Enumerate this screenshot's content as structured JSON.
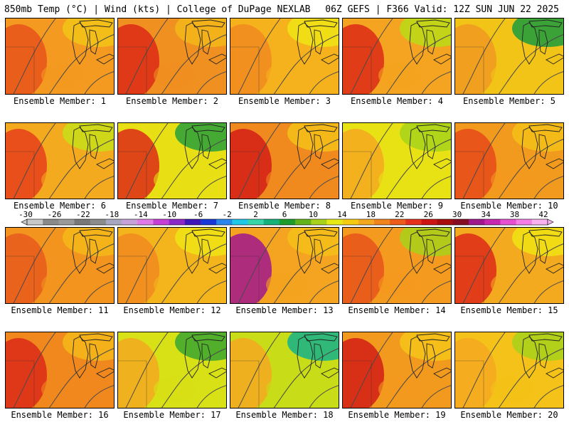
{
  "header": {
    "left": "850mb Temp (°C) | Wind (kts) | College of DuPage NEXLAB",
    "right": "06Z GEFS | F366 Valid: 12Z SUN JUN 22 2025"
  },
  "colorbar": {
    "labels": [
      "-30",
      "-26",
      "-22",
      "-18",
      "-14",
      "-10",
      "-6",
      "-2",
      "2",
      "6",
      "10",
      "14",
      "18",
      "22",
      "26",
      "30",
      "34",
      "38",
      "42"
    ],
    "colors": [
      "#c8c8c8",
      "#8a8a8a",
      "#9a9a9a",
      "#787878",
      "#8c8c8c",
      "#a7a7c0",
      "#c6a2d8",
      "#e07ae8",
      "#c640d8",
      "#8c28c8",
      "#3c18b8",
      "#1838d8",
      "#2a86ea",
      "#20c8e8",
      "#36d6a8",
      "#14b278",
      "#1e9c2e",
      "#62b41a",
      "#a8d21a",
      "#e6ea14",
      "#f6ca10",
      "#f4a820",
      "#f2841c",
      "#ec5a1c",
      "#e4301c",
      "#cc1414",
      "#a80c0c",
      "#840c24",
      "#a0188c",
      "#c828b0",
      "#e650d0",
      "#f47ee4",
      "#f8b0ee"
    ]
  },
  "members": [
    {
      "label": "Ensemble Member: 1",
      "base": "#f49a20",
      "tint": "#e8541c",
      "blob": "#f2c418"
    },
    {
      "label": "Ensemble Member: 2",
      "base": "#f09020",
      "tint": "#dc2a18",
      "blob": "#f4b81a"
    },
    {
      "label": "Ensemble Member: 3",
      "base": "#f6b21c",
      "tint": "#f08a1e",
      "blob": "#eee414"
    },
    {
      "label": "Ensemble Member: 4",
      "base": "#f4a420",
      "tint": "#dc2a18",
      "blob": "#b8dc18"
    },
    {
      "label": "Ensemble Member: 5",
      "base": "#f2c418",
      "tint": "#f09a20",
      "blob": "#1a9c3c"
    },
    {
      "label": "Ensemble Member: 6",
      "base": "#f4aa1e",
      "tint": "#e6401a",
      "blob": "#c8e018"
    },
    {
      "label": "Ensemble Member: 7",
      "base": "#e8e014",
      "tint": "#dc2a18",
      "blob": "#28a038"
    },
    {
      "label": "Ensemble Member: 8",
      "base": "#f08a1e",
      "tint": "#d41c16",
      "blob": "#f4c018"
    },
    {
      "label": "Ensemble Member: 9",
      "base": "#e8e214",
      "tint": "#f4a820",
      "blob": "#a6d21a"
    },
    {
      "label": "Ensemble Member: 10",
      "base": "#f29a1e",
      "tint": "#e64a1a",
      "blob": "#f4c018"
    },
    {
      "label": "Ensemble Member: 11",
      "base": "#f2941e",
      "tint": "#e85a1c",
      "blob": "#f6b81a"
    },
    {
      "label": "Ensemble Member: 12",
      "base": "#f4b41c",
      "tint": "#f08a1e",
      "blob": "#eee414"
    },
    {
      "label": "Ensemble Member: 13",
      "base": "#f4a420",
      "tint": "#a0188c",
      "blob": "#f4c018"
    },
    {
      "label": "Ensemble Member: 14",
      "base": "#f49a1e",
      "tint": "#e8541c",
      "blob": "#a8d21a"
    },
    {
      "label": "Ensemble Member: 15",
      "base": "#f4aa1e",
      "tint": "#dc2a18",
      "blob": "#eee414"
    },
    {
      "label": "Ensemble Member: 16",
      "base": "#f0881e",
      "tint": "#dc2a18",
      "blob": "#f4b81a"
    },
    {
      "label": "Ensemble Member: 17",
      "base": "#d8e016",
      "tint": "#f4a820",
      "blob": "#3aa630"
    },
    {
      "label": "Ensemble Member: 18",
      "base": "#c8dc18",
      "tint": "#f4a820",
      "blob": "#14b28a"
    },
    {
      "label": "Ensemble Member: 19",
      "base": "#f29a1e",
      "tint": "#d41c16",
      "blob": "#f6c418"
    },
    {
      "label": "Ensemble Member: 20",
      "base": "#f4c218",
      "tint": "#f4a820",
      "blob": "#a6d21a"
    }
  ]
}
